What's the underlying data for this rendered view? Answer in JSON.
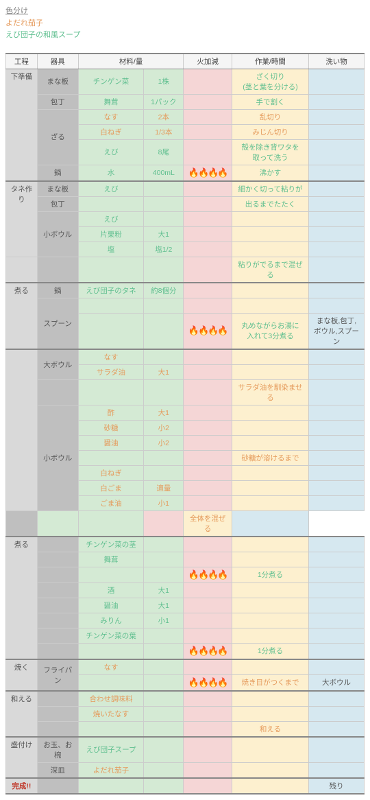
{
  "legend": {
    "title": "色分け",
    "dish1": "よだれ茄子",
    "dish2": "えび団子の和風スープ",
    "color_title": "#808080",
    "color_dish1": "#e59a5b",
    "color_dish2": "#5fbf8f"
  },
  "headers": {
    "stage": "工程",
    "tool": "器具",
    "ingredient": "材料/量",
    "heat": "火加減",
    "work": "作業/時間",
    "wash": "洗い物"
  },
  "colors": {
    "green": "#5fbf8f",
    "orange": "#e59a5b",
    "gray": "#555"
  },
  "rows": [
    {
      "stage": "下準備",
      "stagespan": 6,
      "tool": "まな板",
      "toolspan": 1,
      "ing": "チンゲン菜",
      "amt": "1株",
      "ic": "green",
      "heat": "",
      "work": "ざく切り\n(茎と葉を分ける)",
      "wc": "green",
      "wash": ""
    },
    {
      "tool": "包丁",
      "ing": "舞茸",
      "amt": "1パック",
      "ic": "green",
      "work": "手で割く",
      "wc": "green"
    },
    {
      "tool": "ざる",
      "toolspan": 3,
      "ing": "なす",
      "amt": "2本",
      "ic": "orange",
      "work": "乱切り",
      "wc": "orange"
    },
    {
      "ing": "白ねぎ",
      "amt": "1/3本",
      "ic": "orange",
      "work": "みじん切り",
      "wc": "orange"
    },
    {
      "ing": "えび",
      "amt": "8尾",
      "ic": "green",
      "work": "殻を除き背ワタを\n取って洗う",
      "wc": "green"
    },
    {
      "tool": "鍋",
      "ing": "水",
      "amt": "400mL",
      "ic": "green",
      "heat": "3",
      "work": "沸かす",
      "wc": "green"
    },
    {
      "sep": true,
      "stage": "タネ作り",
      "stagespan": 5,
      "tool": "まな板",
      "ing": "えび",
      "ic": "green",
      "work": "細かく切って粘りが",
      "wc": "green",
      "workspan": 1
    },
    {
      "tool": "包丁",
      "ing": "",
      "work": "出るまでたたく",
      "wc": "green"
    },
    {
      "tool": "小ボウル",
      "toolspan": 3,
      "ing": "えび",
      "ic": "green",
      "work": ""
    },
    {
      "ing": "片栗粉",
      "amt": "大1",
      "ic": "green"
    },
    {
      "ing": "塩",
      "amt": "塩1/2",
      "ic": "green",
      "work": ""
    },
    {
      "blankstage": true,
      "work": "粘りがでるまで混ぜる",
      "wc": "green"
    },
    {
      "sep": true,
      "stage": "煮る",
      "stagespan": 3,
      "tool": "鍋",
      "ing": "えび団子のタネ",
      "amt": "約8個分",
      "ic": "green"
    },
    {
      "tool": "スプーン",
      "toolspan": 2
    },
    {
      "heat": "2",
      "work": "丸めながらお湯に\n入れて3分煮る",
      "wc": "green",
      "wash": "まな板,包丁,\nボウル,スプーン"
    },
    {
      "sep": true,
      "stage": "",
      "stagespan": 10,
      "tool": "大ボウル",
      "toolspan": 2,
      "ing": "なす",
      "ic": "orange"
    },
    {
      "ing": "サラダ油",
      "amt": "大1",
      "ic": "orange"
    },
    {
      "blanktool": true,
      "work": "サラダ油を馴染ませる",
      "wc": "orange"
    },
    {
      "tool": "小ボウル",
      "toolspan": 7,
      "ing": "酢",
      "amt": "大1",
      "ic": "orange"
    },
    {
      "ing": "砂糖",
      "amt": "小2",
      "ic": "orange"
    },
    {
      "ing": "醤油",
      "amt": "小2",
      "ic": "orange"
    },
    {
      "work": "砂糖が溶けるまで",
      "wc": "orange"
    },
    {
      "ing": "白ねぎ",
      "ic": "orange"
    },
    {
      "ing": "白ごま",
      "amt": "適量",
      "ic": "orange"
    },
    {
      "ing": "ごま油",
      "amt": "小1",
      "ic": "orange"
    },
    {
      "blanktool": true,
      "work": "全体を混ぜる",
      "wc": "orange"
    },
    {
      "sep": true,
      "stage": "煮る",
      "stagespan": 8,
      "ing": "チンゲン菜の茎",
      "ic": "green"
    },
    {
      "ing": "舞茸",
      "ic": "green"
    },
    {
      "heat": "2",
      "work": "1分煮る",
      "wc": "green"
    },
    {
      "ing": "酒",
      "amt": "大1",
      "ic": "green"
    },
    {
      "ing": "醤油",
      "amt": "大1",
      "ic": "green"
    },
    {
      "ing": "みりん",
      "amt": "小1",
      "ic": "green"
    },
    {
      "ing": "チンゲン菜の葉",
      "ic": "green"
    },
    {
      "heat": "2",
      "work": "1分煮る",
      "wc": "green"
    },
    {
      "sep": true,
      "stage": "焼く",
      "stagespan": 2,
      "tool": "フライパン",
      "toolspan": 2,
      "ing": "なす",
      "ic": "orange"
    },
    {
      "heat": "2",
      "work": "焼き目がつくまで",
      "wc": "orange",
      "wash": "大ボウル"
    },
    {
      "sep": true,
      "stage": "和える",
      "stagespan": 3,
      "ing": "合わせ調味料",
      "ic": "orange"
    },
    {
      "ing": "焼いたなす",
      "ic": "orange"
    },
    {
      "work": "和える",
      "wc": "orange"
    },
    {
      "sep": true,
      "stage": "盛付け",
      "stagespan": 2,
      "tool": "お玉、お椀",
      "ing": "えび団子スープ",
      "ic": "green"
    },
    {
      "tool": "深皿",
      "ing": "よだれ茄子",
      "ic": "orange"
    },
    {
      "sep": true,
      "done": true,
      "stage": "完成!!",
      "wash": "残り"
    }
  ]
}
